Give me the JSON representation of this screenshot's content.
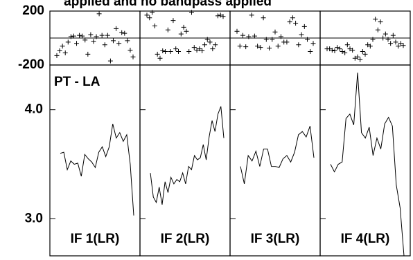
{
  "chart_data": {
    "type": "possm",
    "title": "applied and no bandpass applied",
    "baseline": "PT - LA",
    "color": "#000000",
    "phase": {
      "ylim": [
        -200,
        200
      ],
      "yticks": [
        -200,
        200
      ]
    },
    "amplitude": {
      "ylim": [
        2.66,
        4.41
      ],
      "yticks": [
        {
          "value": 3,
          "label": "3.0"
        },
        {
          "value": 4,
          "label": "4.0"
        }
      ]
    },
    "panels": [
      {
        "label": "IF 1(LR)",
        "phase": [
          -130,
          -95,
          -60,
          -110,
          -30,
          10,
          15,
          -40,
          20,
          15,
          -15,
          -120,
          25,
          -25,
          10,
          180,
          20,
          -50,
          20,
          -170,
          -20,
          70,
          -40,
          40,
          35,
          -20,
          -90,
          -140
        ],
        "amplitude": [
          3.6,
          3.61,
          3.45,
          3.53,
          3.5,
          3.51,
          3.39,
          3.59,
          3.55,
          3.52,
          3.47,
          3.61,
          3.66,
          3.57,
          3.66,
          3.87,
          3.74,
          3.79,
          3.71,
          3.77,
          3.5,
          3.03
        ]
      },
      {
        "label": "IF 2(LR)",
        "phase": [
          170,
          150,
          190,
          90,
          -120,
          -150,
          -95,
          -100,
          60,
          -100,
          130,
          -80,
          -100,
          30,
          80,
          50,
          -100,
          190,
          -70,
          -90,
          -80,
          -95,
          -50,
          -10,
          -30,
          -80,
          -50,
          165,
          170,
          160
        ],
        "amplitude": [
          3.42,
          3.2,
          3.15,
          3.29,
          3.13,
          3.34,
          3.24,
          3.38,
          3.32,
          3.36,
          3.34,
          3.42,
          3.32,
          3.48,
          3.45,
          3.58,
          3.54,
          3.56,
          3.68,
          3.54,
          3.75,
          3.9,
          3.8,
          3.96,
          4.03,
          3.74
        ]
      },
      {
        "label": "IF 3(LR)",
        "phase": [
          50,
          -60,
          20,
          -65,
          10,
          170,
          15,
          -60,
          -70,
          150,
          -10,
          -75,
          -10,
          45,
          -60,
          10,
          -30,
          -30,
          120,
          150,
          110,
          -50,
          25,
          85,
          -10,
          -100,
          -40
        ],
        "amplitude": [
          3.48,
          3.32,
          3.58,
          3.53,
          3.62,
          3.48,
          3.64,
          3.64,
          3.48,
          3.48,
          3.47,
          3.55,
          3.58,
          3.52,
          3.61,
          3.77,
          3.8,
          3.75,
          3.85,
          3.56
        ]
      },
      {
        "label": "IF 4(LR)",
        "phase": [
          -80,
          -80,
          -90,
          -95,
          -70,
          -80,
          -100,
          -110,
          -50,
          -80,
          -90,
          -150,
          -140,
          -160,
          -100,
          -120,
          -50,
          -60,
          -10,
          140,
          60,
          120,
          0,
          30,
          -10,
          -40,
          20,
          -30,
          -60,
          -40,
          -55
        ],
        "amplitude": [
          3.5,
          3.43,
          3.5,
          3.52,
          3.92,
          3.96,
          3.86,
          4.34,
          3.79,
          3.74,
          3.84,
          3.58,
          3.74,
          3.64,
          3.87,
          3.93,
          3.85,
          3.31,
          3.1,
          2.66
        ]
      }
    ]
  }
}
